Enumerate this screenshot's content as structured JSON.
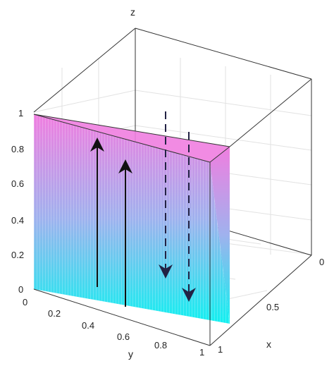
{
  "plot": {
    "axis_labels": {
      "x": "x",
      "y": "y",
      "z": "z"
    },
    "z_ticks": [
      "0",
      "0.2",
      "0.4",
      "0.6",
      "0.8",
      "1"
    ],
    "y_ticks": [
      "0",
      "0.2",
      "0.4",
      "0.6",
      "0.8",
      "1"
    ],
    "x_ticks": [
      "0",
      "0.5",
      "1"
    ],
    "grid": true,
    "box": true
  },
  "surface": {
    "plane": "x = 1",
    "colormap_top": "#f07ee0",
    "colormap_bottom": "#12f0f0"
  },
  "arrows": [
    {
      "direction": "up",
      "style": "solid"
    },
    {
      "direction": "up",
      "style": "solid"
    },
    {
      "direction": "down",
      "style": "dashed"
    },
    {
      "direction": "down",
      "style": "dashed"
    }
  ],
  "colors": {
    "box": "#333333",
    "grid": "#e2e2e2",
    "arrow_solid": "#111111",
    "arrow_dashed": "#222244"
  }
}
